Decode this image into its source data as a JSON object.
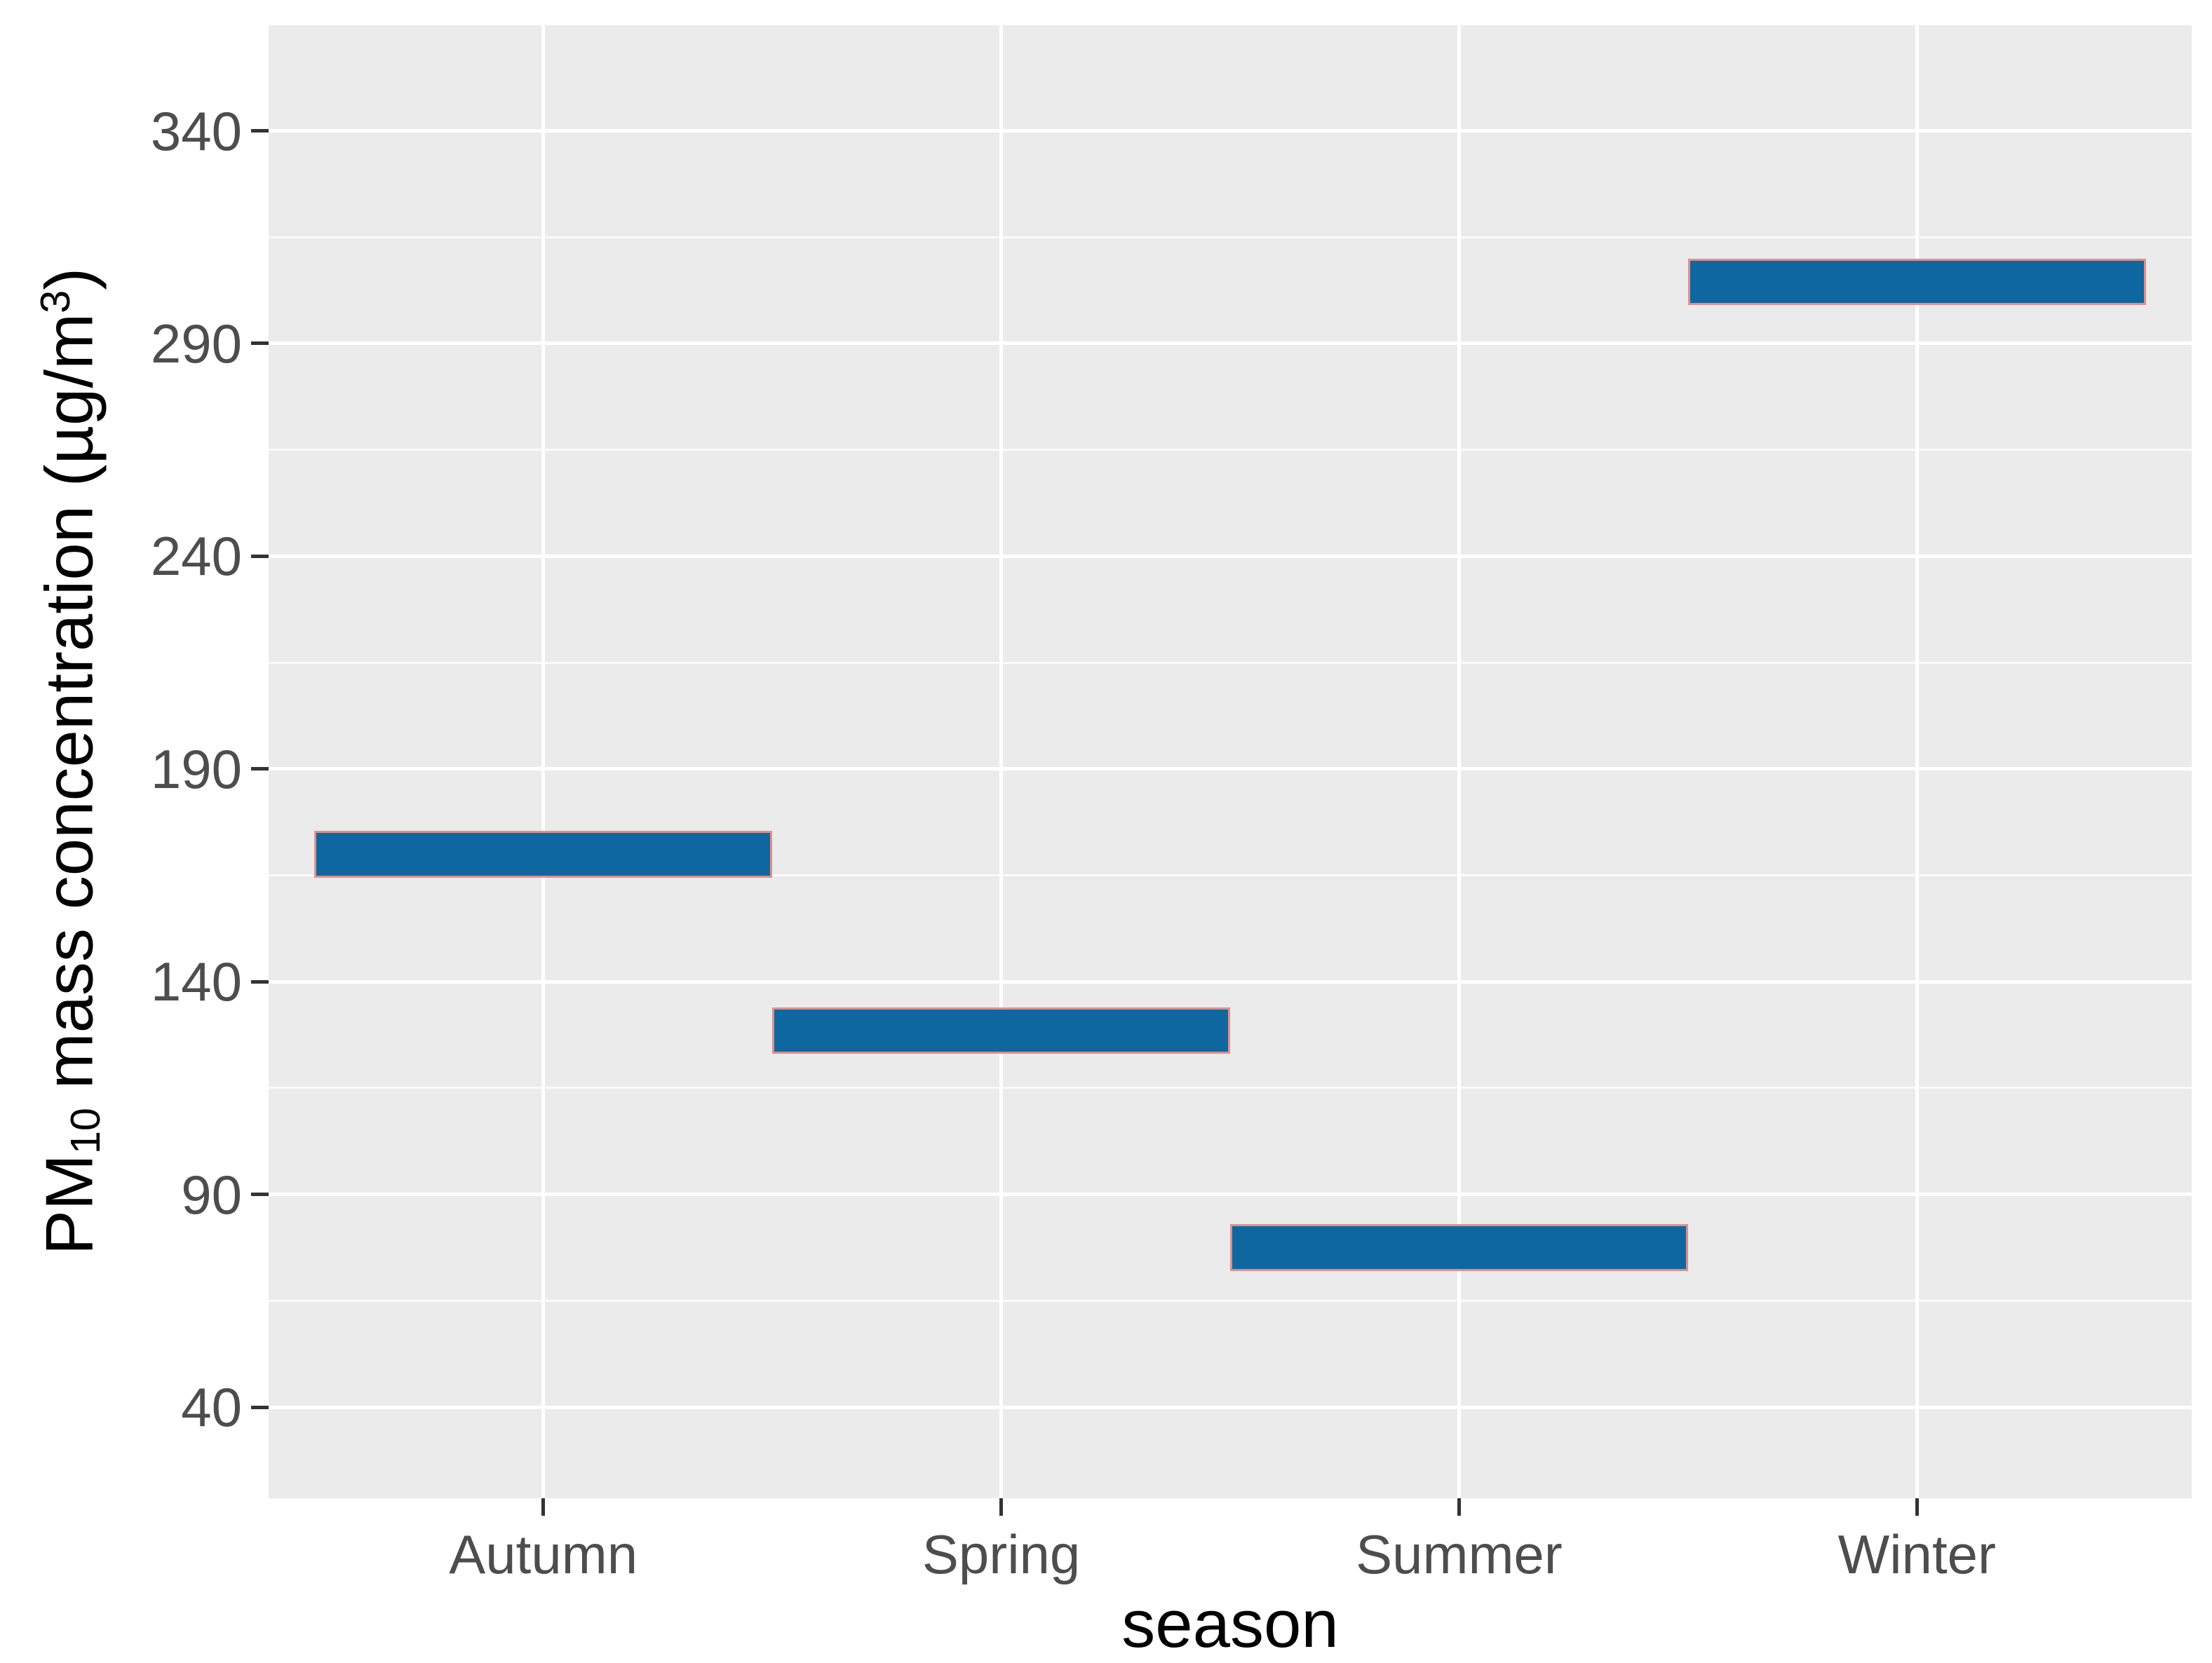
{
  "chart_data": {
    "type": "crossbar",
    "title": "",
    "categories": [
      "Autumn",
      "Spring",
      "Summer",
      "Winter"
    ],
    "series": [
      {
        "name": "PM10 mass concentration",
        "values": [
          {
            "category": "Autumn",
            "center": 170.0,
            "ymin": 165.0,
            "ymax": 175.0
          },
          {
            "category": "Spring",
            "center": 128.5,
            "ymin": 123.5,
            "ymax": 133.5
          },
          {
            "category": "Summer",
            "center": 77.5,
            "ymin": 72.5,
            "ymax": 82.5
          },
          {
            "category": "Winter",
            "center": 304.5,
            "ymin": 299.5,
            "ymax": 309.5
          }
        ]
      }
    ],
    "xlabel": "season",
    "ylabel": "PM10 mass concentration (µg/m3)",
    "ylabel_parts": {
      "base": "PM",
      "sub": "10",
      "mid": " mass concentration (µg/m",
      "sup": "3",
      "close": ")"
    },
    "y_ticks": [
      40,
      90,
      140,
      190,
      240,
      290,
      340
    ],
    "y_minor_gridlines": [
      65,
      115,
      165,
      215,
      265,
      315
    ],
    "ylim": [
      18.6,
      364.8
    ],
    "grid": true,
    "legend": false,
    "colors": {
      "bar_fill": "#0F67A0",
      "bar_border": "#DD908D",
      "panel_background": "#EBEBEB",
      "grid_major": "#FFFFFF",
      "grid_minor": "#FAFAFA",
      "tick_mark": "#333333",
      "tick_label": "#4D4D4D",
      "axis_title": "#000000"
    }
  }
}
